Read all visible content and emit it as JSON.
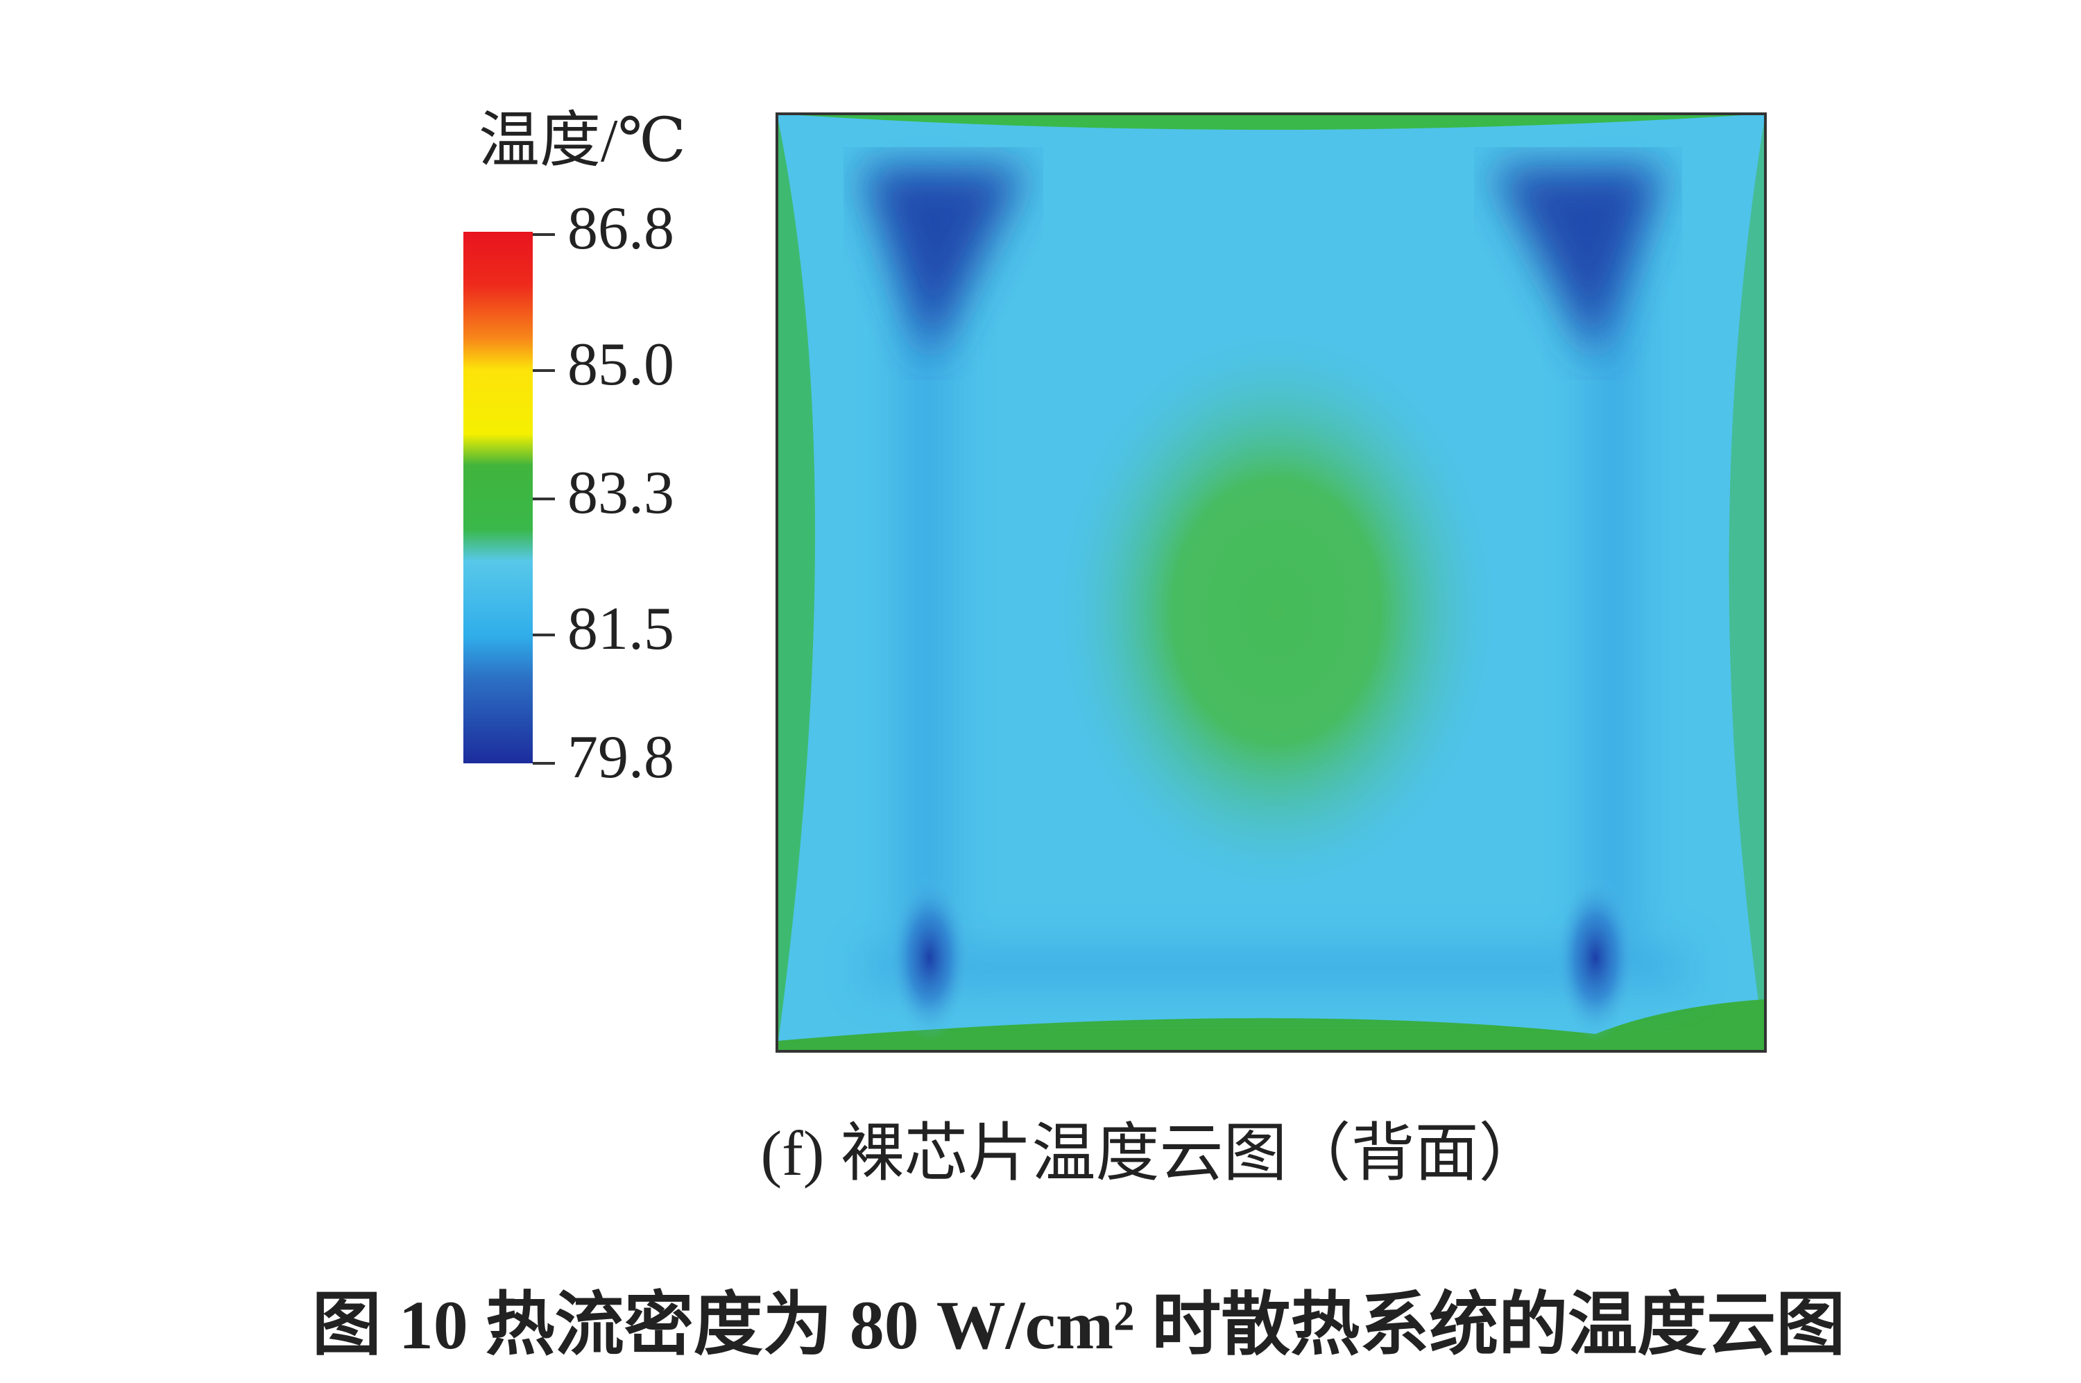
{
  "figure": {
    "colorbar": {
      "title": "温度/℃",
      "ticks": [
        86.8,
        {
          "value": 85,
          "label": "85.0"
        },
        83.3,
        81.5,
        79.8
      ]
    },
    "subcaption": "(f) 裸芯片温度云图（背面）",
    "caption": "图 10 热流密度为 80 W/cm² 时散热系统的温度云图"
  }
}
